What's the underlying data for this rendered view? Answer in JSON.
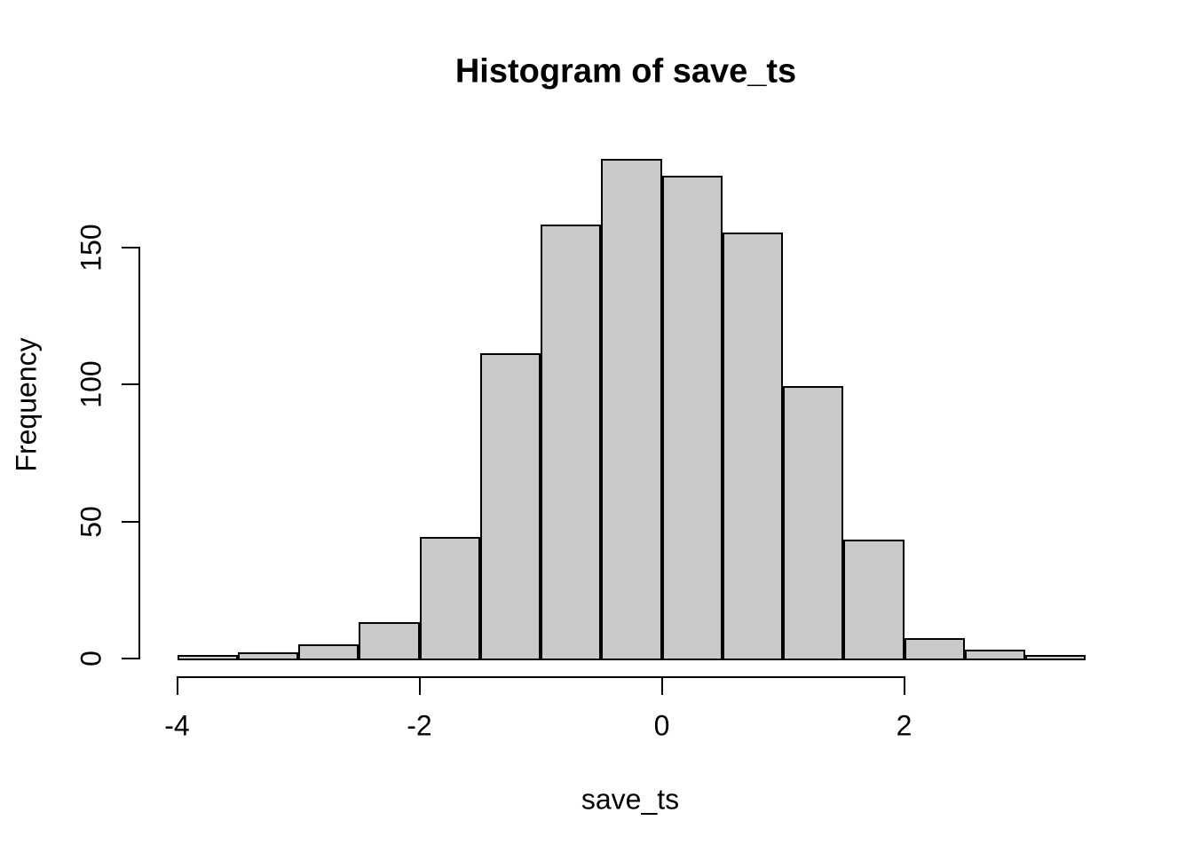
{
  "figure": {
    "background": "#FFFFFF",
    "text_color": "#000000"
  },
  "chart_data": {
    "type": "bar",
    "subtype": "histogram",
    "title": "Histogram of save_ts",
    "xlabel": "save_ts",
    "ylabel": "Frequency",
    "bin_start": -4,
    "bin_width": 0.5,
    "bin_edges": [
      -4,
      -3.5,
      -3,
      -2.5,
      -2,
      -1.5,
      -1,
      -0.5,
      0,
      0.5,
      1,
      1.5,
      2,
      2.5,
      3,
      3.5
    ],
    "counts": [
      1,
      2,
      5,
      13,
      44,
      111,
      158,
      182,
      176,
      155,
      99,
      43,
      7,
      3,
      1
    ],
    "x_ticks": [
      -4,
      -2,
      0,
      2
    ],
    "y_ticks": [
      0,
      50,
      100,
      150
    ],
    "xlim": [
      -4,
      3.5
    ],
    "ylim": [
      0,
      182
    ],
    "grid": false,
    "legend_position": "none",
    "bar_fill": "#C9C9C9",
    "bar_border": "#000000",
    "axis_color": "#000000"
  }
}
